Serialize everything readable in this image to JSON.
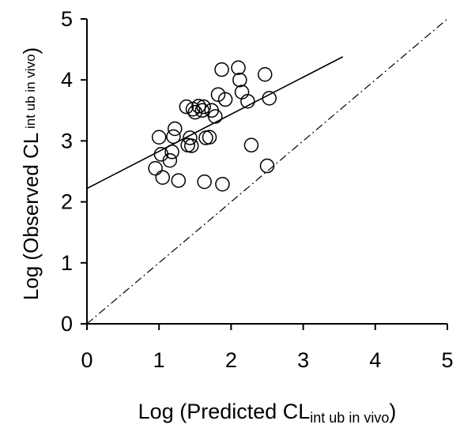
{
  "chart_data": {
    "type": "scatter",
    "xlabel": {
      "main": "Log (Predicted CL",
      "sub": "int ub in vivo",
      "close": ")"
    },
    "ylabel": {
      "main": "Log (Observed CL",
      "sub": " int ub in vivo",
      "close": ")"
    },
    "xlim": [
      0,
      5
    ],
    "ylim": [
      0,
      5
    ],
    "xticks": [
      0,
      1,
      2,
      3,
      4,
      5
    ],
    "yticks": [
      0,
      1,
      2,
      3,
      4,
      5
    ],
    "grid": false,
    "legend": "none",
    "marker": "open-circle",
    "points": [
      {
        "x": 0.95,
        "y": 2.55
      },
      {
        "x": 1.05,
        "y": 2.4
      },
      {
        "x": 1.27,
        "y": 2.35
      },
      {
        "x": 1.0,
        "y": 3.06
      },
      {
        "x": 1.03,
        "y": 2.78
      },
      {
        "x": 1.15,
        "y": 2.68
      },
      {
        "x": 1.18,
        "y": 2.82
      },
      {
        "x": 1.2,
        "y": 3.07
      },
      {
        "x": 1.22,
        "y": 3.2
      },
      {
        "x": 1.4,
        "y": 2.93
      },
      {
        "x": 1.43,
        "y": 3.05
      },
      {
        "x": 1.45,
        "y": 2.92
      },
      {
        "x": 1.38,
        "y": 3.56
      },
      {
        "x": 1.47,
        "y": 3.52
      },
      {
        "x": 1.5,
        "y": 3.47
      },
      {
        "x": 1.55,
        "y": 3.57
      },
      {
        "x": 1.6,
        "y": 3.5
      },
      {
        "x": 1.62,
        "y": 3.56
      },
      {
        "x": 1.65,
        "y": 3.05
      },
      {
        "x": 1.7,
        "y": 3.06
      },
      {
        "x": 1.73,
        "y": 3.5
      },
      {
        "x": 1.78,
        "y": 3.4
      },
      {
        "x": 1.82,
        "y": 3.76
      },
      {
        "x": 1.92,
        "y": 3.68
      },
      {
        "x": 1.87,
        "y": 4.17
      },
      {
        "x": 2.1,
        "y": 4.2
      },
      {
        "x": 2.12,
        "y": 4.0
      },
      {
        "x": 2.15,
        "y": 3.8
      },
      {
        "x": 2.23,
        "y": 3.65
      },
      {
        "x": 2.28,
        "y": 2.93
      },
      {
        "x": 1.63,
        "y": 2.33
      },
      {
        "x": 1.88,
        "y": 2.29
      },
      {
        "x": 2.47,
        "y": 4.09
      },
      {
        "x": 2.53,
        "y": 3.7
      },
      {
        "x": 2.5,
        "y": 2.59
      }
    ],
    "regression_line": {
      "x": [
        0,
        3.55
      ],
      "y": [
        2.22,
        4.38
      ],
      "style": "solid"
    },
    "identity_line": {
      "x": [
        0,
        5
      ],
      "y": [
        0,
        5
      ],
      "style": "dash-dot"
    }
  }
}
